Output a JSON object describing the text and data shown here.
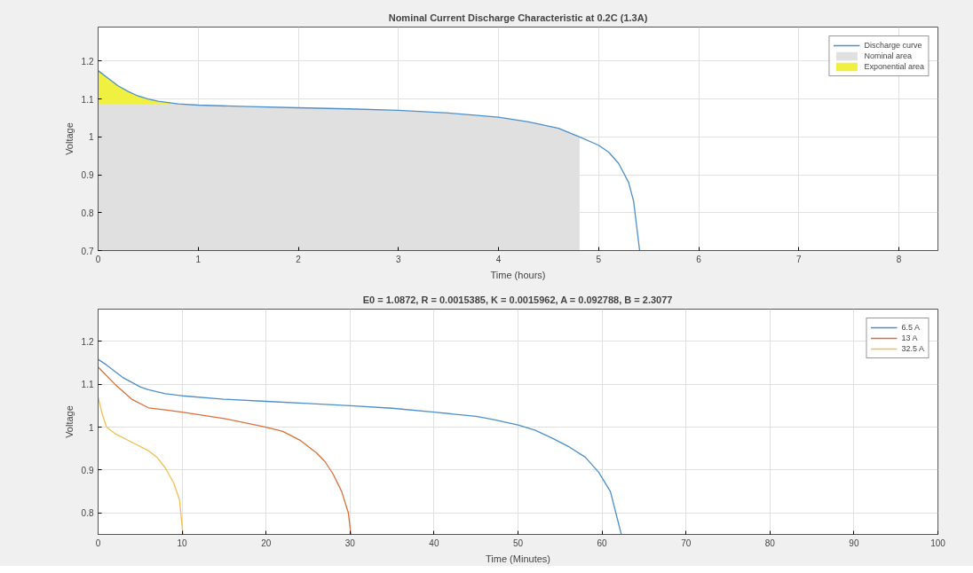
{
  "chart_data": [
    {
      "type": "line",
      "title": "Nominal Current Discharge Characteristic at 0.2C (1.3A)",
      "xlabel": "Time (hours)",
      "ylabel": "Voltage",
      "xlim": [
        0,
        8.39
      ],
      "ylim": [
        0.7,
        1.29
      ],
      "xticks": [
        0,
        1,
        2,
        3,
        4,
        5,
        6,
        7,
        8
      ],
      "yticks": [
        0.7,
        0.8,
        0.9,
        1,
        1.1,
        1.2
      ],
      "grid": true,
      "legend": "top right",
      "series": [
        {
          "name": "Discharge curve",
          "type": "line",
          "color": "#4d8fc9",
          "x": [
            0,
            0.1,
            0.2,
            0.3,
            0.4,
            0.5,
            0.6,
            0.8,
            1,
            1.5,
            2,
            2.5,
            3,
            3.5,
            4,
            4.3,
            4.6,
            4.81,
            5,
            5.1,
            5.2,
            5.3,
            5.35,
            5.41
          ],
          "values": [
            1.175,
            1.155,
            1.135,
            1.12,
            1.108,
            1.1,
            1.094,
            1.087,
            1.084,
            1.08,
            1.077,
            1.074,
            1.07,
            1.063,
            1.052,
            1.04,
            1.023,
            1.0,
            0.978,
            0.96,
            0.93,
            0.88,
            0.83,
            0.7
          ]
        },
        {
          "name": "Nominal area",
          "type": "area",
          "color": "#e0e0e0",
          "x": [
            0,
            0.8,
            1,
            1.5,
            2,
            2.5,
            3,
            3.5,
            4,
            4.3,
            4.6,
            4.81
          ],
          "values": [
            1.087,
            1.087,
            1.084,
            1.08,
            1.077,
            1.074,
            1.07,
            1.063,
            1.052,
            1.04,
            1.023,
            1.0
          ]
        },
        {
          "name": "Exponential area",
          "type": "area",
          "color": "#f0f040",
          "x": [
            0,
            0.1,
            0.2,
            0.3,
            0.4,
            0.5,
            0.6,
            0.8
          ],
          "values": [
            1.175,
            1.155,
            1.135,
            1.12,
            1.108,
            1.1,
            1.094,
            1.087
          ]
        }
      ]
    },
    {
      "type": "line",
      "title": "E0 = 1.0872, R = 0.0015385, K = 0.0015962, A = 0.092788, B = 2.3077",
      "xlabel": "Time (Minutes)",
      "ylabel": "Voltage",
      "xlim": [
        0,
        100
      ],
      "ylim": [
        0.75,
        1.275
      ],
      "xticks": [
        0,
        10,
        20,
        30,
        40,
        50,
        60,
        70,
        80,
        90,
        100
      ],
      "yticks": [
        0.8,
        0.9,
        1,
        1.1,
        1.2
      ],
      "grid": true,
      "legend": "top right",
      "series": [
        {
          "name": "6.5 A",
          "color": "#4d8fc9",
          "x": [
            0,
            1,
            2,
            3,
            5,
            6,
            8,
            10,
            15,
            20,
            25,
            30,
            35,
            40,
            45,
            47,
            50,
            52,
            54,
            56,
            58,
            59.6,
            61,
            62.3
          ],
          "values": [
            1.158,
            1.145,
            1.13,
            1.115,
            1.094,
            1.087,
            1.078,
            1.073,
            1.065,
            1.06,
            1.055,
            1.05,
            1.044,
            1.035,
            1.025,
            1.018,
            1.005,
            0.993,
            0.975,
            0.955,
            0.93,
            0.895,
            0.85,
            0.75
          ]
        },
        {
          "name": "13 A",
          "color": "#d9703a",
          "x": [
            0,
            2,
            4,
            6,
            8,
            10,
            15,
            20,
            22,
            24,
            26,
            27,
            28,
            29,
            29.8,
            30.1
          ],
          "values": [
            1.14,
            1.1,
            1.065,
            1.045,
            1.04,
            1.035,
            1.02,
            1.0,
            0.99,
            0.97,
            0.94,
            0.92,
            0.89,
            0.85,
            0.8,
            0.75
          ]
        },
        {
          "name": "32.5 A",
          "color": "#f0c050",
          "x": [
            0,
            0.5,
            1,
            2,
            4,
            6,
            7,
            8,
            9,
            9.7,
            10.1
          ],
          "values": [
            1.07,
            1.03,
            1.0,
            0.985,
            0.965,
            0.945,
            0.93,
            0.905,
            0.87,
            0.83,
            0.75
          ]
        }
      ]
    }
  ]
}
